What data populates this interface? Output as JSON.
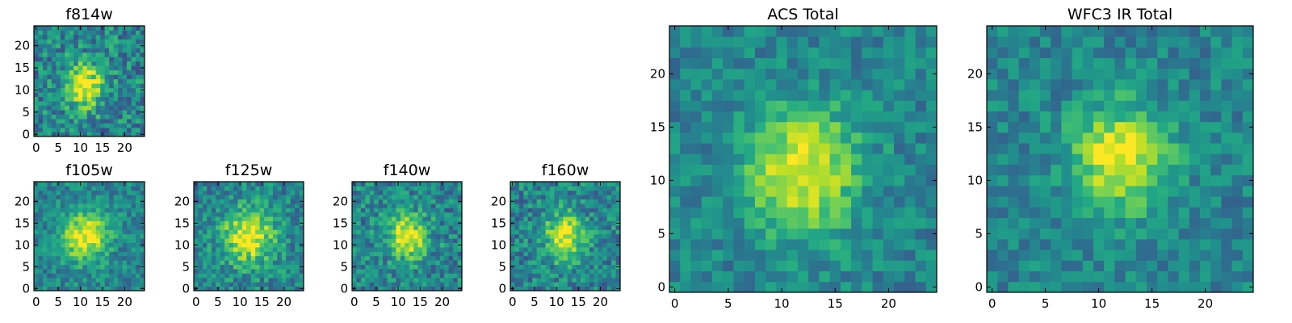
{
  "figure": {
    "colormap": "viridis",
    "colors": {
      "low": "#440154",
      "mid": "#21918c",
      "high": "#fde725",
      "frame": "#000000"
    }
  },
  "chart_data": [
    {
      "type": "heatmap",
      "title": "f814w",
      "x_ticks": [
        "0",
        "5",
        "10",
        "15",
        "20"
      ],
      "y_ticks": [
        "0",
        "5",
        "10",
        "15",
        "20"
      ],
      "xlim": [
        0,
        25
      ],
      "ylim": [
        0,
        25
      ],
      "grid": false,
      "pixel_grid": "25x25",
      "peak": [
        11,
        11
      ],
      "peak_width": 3.5,
      "noise": 0.22
    },
    {
      "type": "heatmap",
      "title": "f105w",
      "x_ticks": [
        "0",
        "5",
        "10",
        "15",
        "20"
      ],
      "y_ticks": [
        "0",
        "5",
        "10",
        "15",
        "20"
      ],
      "xlim": [
        0,
        25
      ],
      "ylim": [
        0,
        25
      ],
      "grid": false,
      "pixel_grid": "25x25",
      "peak": [
        11,
        12
      ],
      "peak_width": 4.0,
      "noise": 0.16
    },
    {
      "type": "heatmap",
      "title": "f125w",
      "x_ticks": [
        "0",
        "5",
        "10",
        "15",
        "20"
      ],
      "y_ticks": [
        "0",
        "5",
        "10",
        "15",
        "20"
      ],
      "xlim": [
        0,
        25
      ],
      "ylim": [
        0,
        25
      ],
      "grid": false,
      "pixel_grid": "25x25",
      "peak": [
        12,
        12
      ],
      "peak_width": 4.5,
      "noise": 0.18
    },
    {
      "type": "heatmap",
      "title": "f140w",
      "x_ticks": [
        "0",
        "5",
        "10",
        "15",
        "20"
      ],
      "y_ticks": [
        "0",
        "5",
        "10",
        "15",
        "20"
      ],
      "xlim": [
        0,
        25
      ],
      "ylim": [
        0,
        25
      ],
      "grid": false,
      "pixel_grid": "25x25",
      "peak": [
        12,
        12
      ],
      "peak_width": 3.5,
      "noise": 0.2
    },
    {
      "type": "heatmap",
      "title": "f160w",
      "x_ticks": [
        "0",
        "5",
        "10",
        "15",
        "20"
      ],
      "y_ticks": [
        "0",
        "5",
        "10",
        "15",
        "20"
      ],
      "xlim": [
        0,
        25
      ],
      "ylim": [
        0,
        25
      ],
      "grid": false,
      "pixel_grid": "25x25",
      "peak": [
        12,
        12
      ],
      "peak_width": 3.5,
      "noise": 0.2
    },
    {
      "type": "heatmap",
      "title": "ACS Total",
      "x_ticks": [
        "0",
        "5",
        "10",
        "15",
        "20"
      ],
      "y_ticks": [
        "0",
        "5",
        "10",
        "15",
        "20"
      ],
      "xlim": [
        0,
        25
      ],
      "ylim": [
        0,
        25
      ],
      "grid": false,
      "pixel_grid": "25x25",
      "peak": [
        12,
        11
      ],
      "peak_width": 4.0,
      "noise": 0.14
    },
    {
      "type": "heatmap",
      "title": "WFC3 IR Total",
      "x_ticks": [
        "0",
        "5",
        "10",
        "15",
        "20"
      ],
      "y_ticks": [
        "0",
        "5",
        "10",
        "15",
        "20"
      ],
      "xlim": [
        0,
        25
      ],
      "ylim": [
        0,
        25
      ],
      "grid": false,
      "pixel_grid": "25x25",
      "peak": [
        12,
        12
      ],
      "peak_width": 3.5,
      "noise": 0.14
    }
  ]
}
